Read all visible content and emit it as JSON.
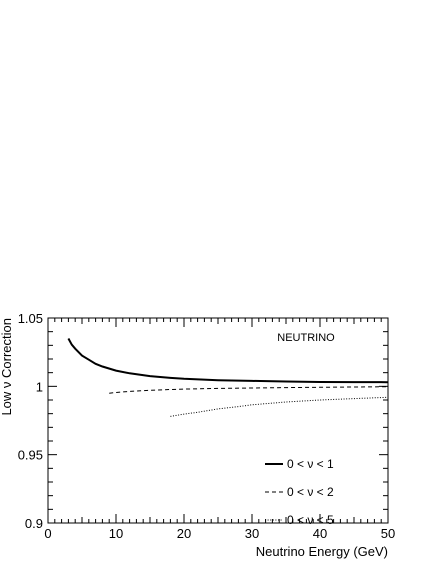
{
  "chart_data": {
    "type": "line",
    "annotation": "NEUTRINO",
    "xlabel": "Neutrino Energy (GeV)",
    "ylabel": "Low ν Correction",
    "xlim": [
      0,
      50
    ],
    "ylim": [
      0.9,
      1.05
    ],
    "x_ticks": [
      0,
      10,
      20,
      30,
      40,
      50
    ],
    "x_tick_labels": [
      "0",
      "10",
      "20",
      "30",
      "40",
      "50"
    ],
    "y_ticks": [
      0.9,
      0.95,
      1.0,
      1.05
    ],
    "y_tick_labels": [
      "0.9",
      "0.95",
      "1",
      "1.05"
    ],
    "grid": false,
    "legend_position": "bottom-right",
    "series": [
      {
        "name": "0 < ν < 1",
        "style": "solid",
        "x": [
          3,
          3.5,
          4,
          5,
          6,
          7,
          8,
          10,
          12,
          15,
          18,
          20,
          25,
          30,
          35,
          40,
          45,
          50
        ],
        "y": [
          1.035,
          1.0305,
          1.0275,
          1.0225,
          1.0195,
          1.0165,
          1.0145,
          1.0115,
          1.0095,
          1.0075,
          1.0062,
          1.0055,
          1.0045,
          1.004,
          1.0035,
          1.0032,
          1.0031,
          1.003
        ]
      },
      {
        "name": "0 < ν < 2",
        "style": "dashed",
        "x": [
          9,
          10,
          12,
          15,
          18,
          20,
          25,
          30,
          35,
          40,
          45,
          50
        ],
        "y": [
          0.995,
          0.9955,
          0.9963,
          0.9971,
          0.9977,
          0.998,
          0.9985,
          0.9988,
          0.9991,
          0.9993,
          0.9995,
          0.9997
        ]
      },
      {
        "name": "0 < ν < 5",
        "style": "dotted",
        "x": [
          18,
          20,
          22,
          25,
          28,
          30,
          35,
          40,
          45,
          50
        ],
        "y": [
          0.978,
          0.9797,
          0.981,
          0.9835,
          0.9852,
          0.9865,
          0.9885,
          0.99,
          0.991,
          0.992
        ]
      }
    ]
  }
}
